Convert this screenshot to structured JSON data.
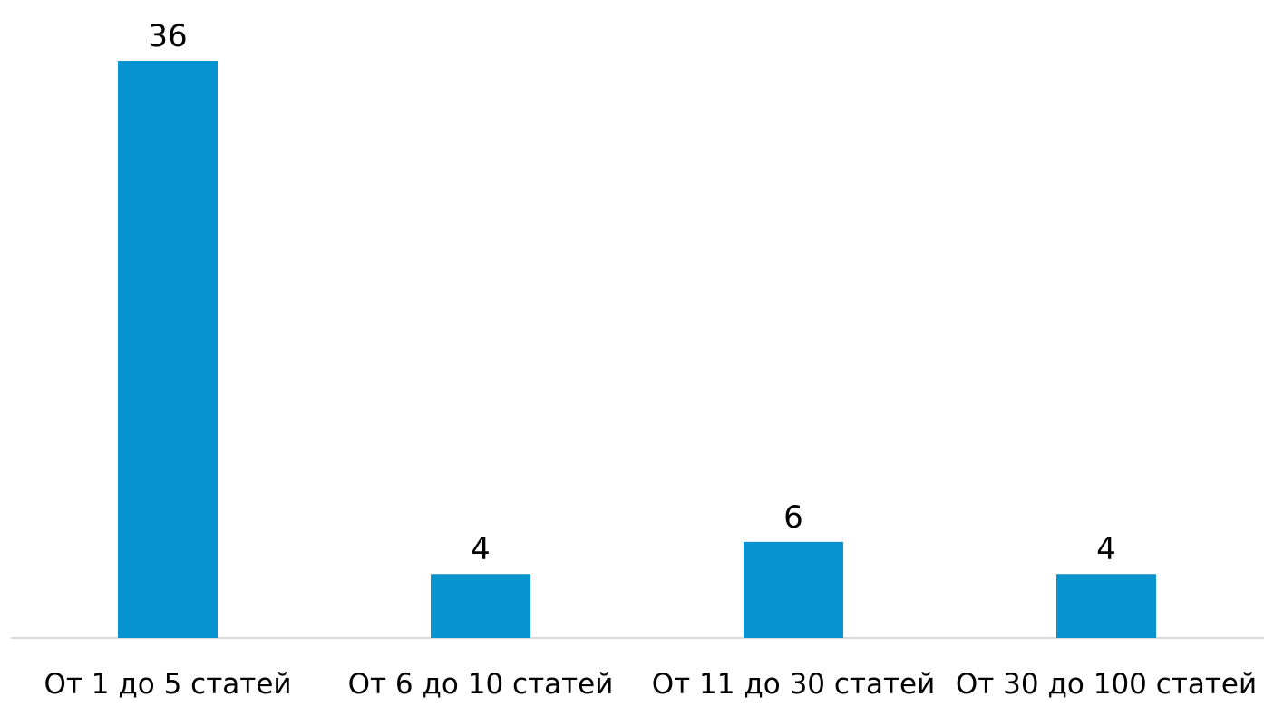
{
  "chart_data": {
    "type": "bar",
    "title": "",
    "xlabel": "",
    "ylabel": "",
    "categories": [
      "От 1 до 5 статей",
      "От 6 до 10 статей",
      "От 11 до 30 статей",
      "От 30 до 100 статей"
    ],
    "values": [
      36,
      4,
      6,
      4
    ],
    "ylim": [
      0,
      36
    ],
    "grid": false,
    "legend": "none",
    "bar_color": "#0893d1",
    "axis_color": "#d9d9d9",
    "data_labels": [
      "36",
      "4",
      "6",
      "4"
    ]
  }
}
